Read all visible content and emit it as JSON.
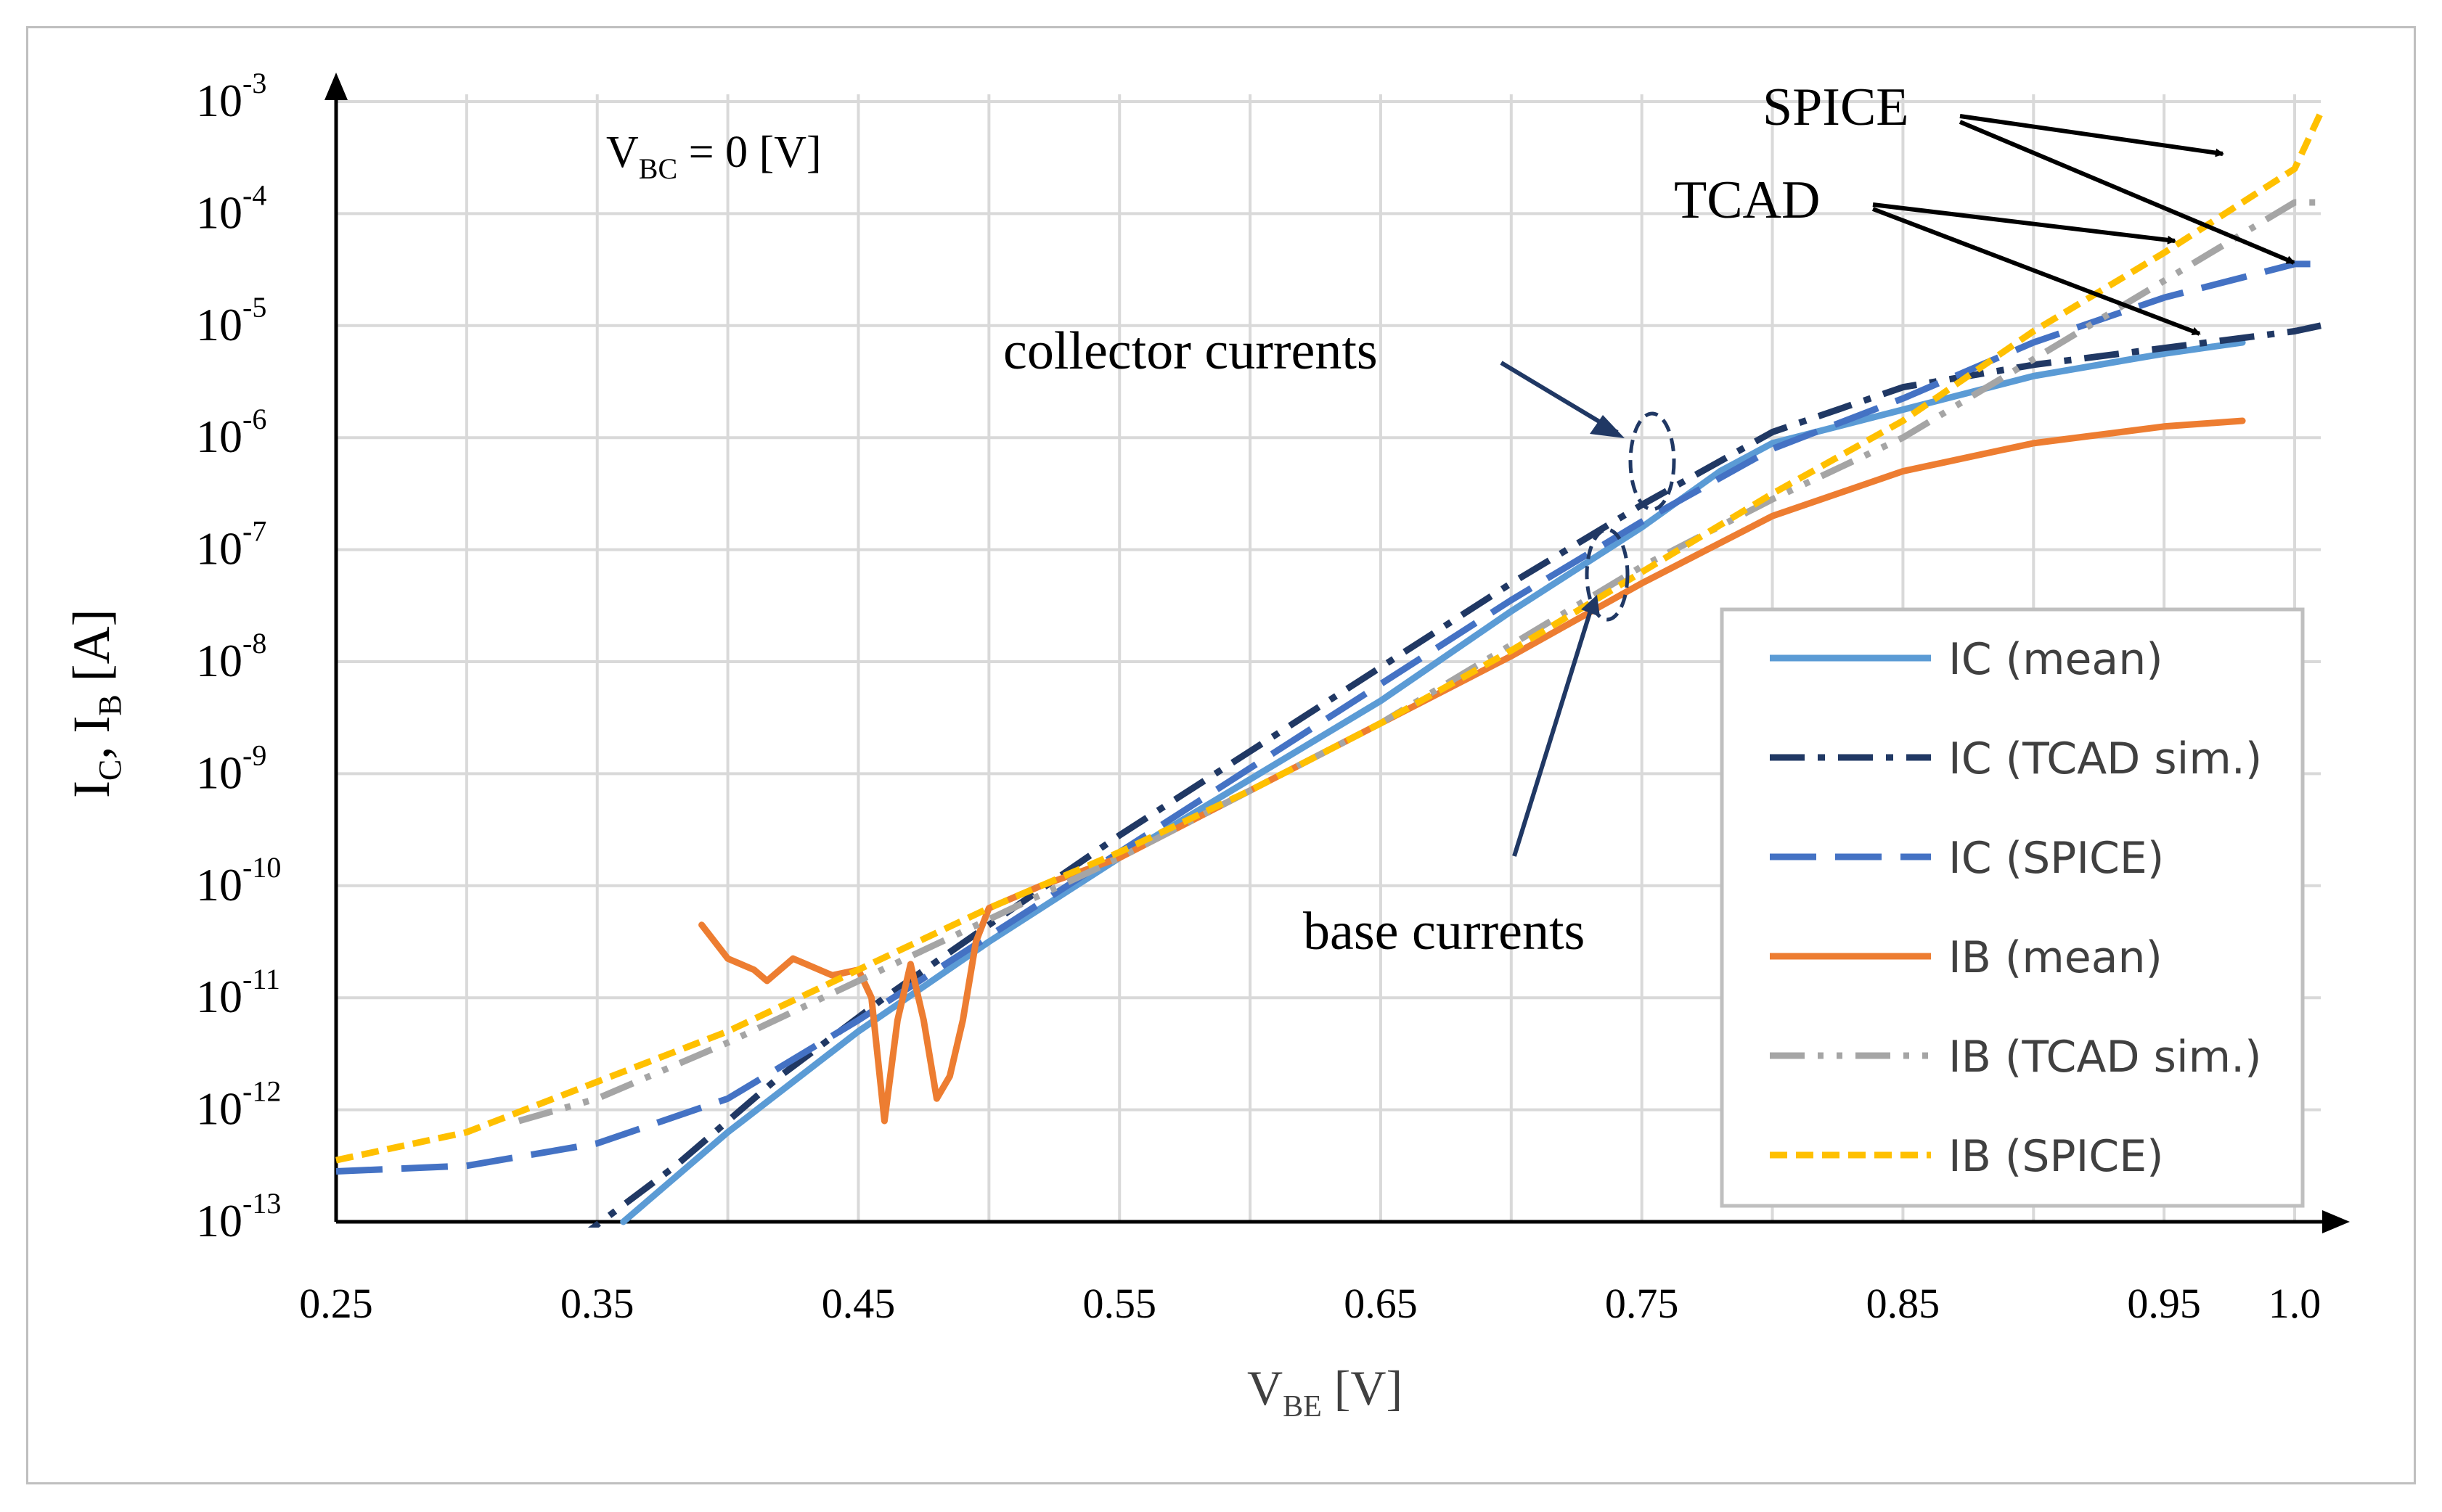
{
  "chart_data": {
    "type": "line",
    "title": "",
    "xlabel": {
      "main": "V",
      "sub": "BE",
      "unit": " [V]"
    },
    "ylabel": {
      "p1": "I",
      "s1": "C",
      "p2": ", I",
      "s2": "B",
      "unit": " [A]"
    },
    "xlim": [
      0.25,
      1.01
    ],
    "ylim_log10": [
      -13,
      -3
    ],
    "x_ticks": [
      {
        "v": 0.25,
        "label": "0.25"
      },
      {
        "v": 0.35,
        "label": "0.35"
      },
      {
        "v": 0.45,
        "label": "0.45"
      },
      {
        "v": 0.55,
        "label": "0.55"
      },
      {
        "v": 0.65,
        "label": "0.65"
      },
      {
        "v": 0.75,
        "label": "0.75"
      },
      {
        "v": 0.85,
        "label": "0.85"
      },
      {
        "v": 0.95,
        "label": "0.95"
      },
      {
        "v": 1.0,
        "label": "1.0"
      }
    ],
    "y_ticks": [
      {
        "exp": -13,
        "base": "10",
        "sup": "-13"
      },
      {
        "exp": -12,
        "base": "10",
        "sup": "-12"
      },
      {
        "exp": -11,
        "base": "10",
        "sup": "-11"
      },
      {
        "exp": -10,
        "base": "10",
        "sup": "-10"
      },
      {
        "exp": -9,
        "base": "10",
        "sup": "-9"
      },
      {
        "exp": -8,
        "base": "10",
        "sup": "-8"
      },
      {
        "exp": -7,
        "base": "10",
        "sup": "-7"
      },
      {
        "exp": -6,
        "base": "10",
        "sup": "-6"
      },
      {
        "exp": -5,
        "base": "10",
        "sup": "-5"
      },
      {
        "exp": -4,
        "base": "10",
        "sup": "-4"
      },
      {
        "exp": -3,
        "base": "10",
        "sup": "-3"
      }
    ],
    "condition_label": {
      "main": "V",
      "sub": "BC",
      "rest": " = 0 [V]"
    },
    "annotations": {
      "spice": "SPICE",
      "tcad": "TCAD",
      "collector": "collector currents",
      "base": "base currents"
    },
    "series": [
      {
        "name": "IC (mean)",
        "color": "#5B9BD5",
        "dash": "solid",
        "x": [
          0.36,
          0.4,
          0.45,
          0.5,
          0.55,
          0.6,
          0.65,
          0.7,
          0.75,
          0.78,
          0.8,
          0.85,
          0.9,
          0.95,
          0.98
        ],
        "log10y": [
          -13.0,
          -12.2,
          -11.3,
          -10.5,
          -9.75,
          -9.05,
          -8.35,
          -7.55,
          -6.8,
          -6.3,
          -6.05,
          -5.75,
          -5.45,
          -5.25,
          -5.15
        ]
      },
      {
        "name": "IC (TCAD sim.)",
        "color": "#203864",
        "dash": "dashdot",
        "x": [
          0.34,
          0.38,
          0.42,
          0.46,
          0.5,
          0.55,
          0.6,
          0.65,
          0.7,
          0.75,
          0.8,
          0.85,
          0.9,
          0.95,
          1.0,
          1.01
        ],
        "log10y": [
          -13.2,
          -12.5,
          -11.7,
          -11.0,
          -10.35,
          -9.55,
          -8.8,
          -8.05,
          -7.3,
          -6.6,
          -5.95,
          -5.55,
          -5.35,
          -5.2,
          -5.05,
          -5.0
        ]
      },
      {
        "name": "IC (SPICE)",
        "color": "#4472C4",
        "dash": "longdash",
        "x": [
          0.25,
          0.3,
          0.35,
          0.4,
          0.45,
          0.5,
          0.55,
          0.6,
          0.65,
          0.7,
          0.75,
          0.8,
          0.85,
          0.9,
          0.95,
          1.0,
          1.01
        ],
        "log10y": [
          -12.55,
          -12.5,
          -12.3,
          -11.9,
          -11.2,
          -10.45,
          -9.7,
          -8.95,
          -8.2,
          -7.45,
          -6.75,
          -6.1,
          -5.65,
          -5.15,
          -4.75,
          -4.45,
          -4.45
        ]
      },
      {
        "name": "IB (mean)",
        "color": "#ED7D31",
        "dash": "solid",
        "x": [
          0.39,
          0.4,
          0.41,
          0.415,
          0.425,
          0.43,
          0.44,
          0.45,
          0.455,
          0.46,
          0.465,
          0.47,
          0.475,
          0.48,
          0.485,
          0.49,
          0.495,
          0.5,
          0.52,
          0.55,
          0.6,
          0.65,
          0.7,
          0.75,
          0.8,
          0.85,
          0.9,
          0.95,
          0.98
        ],
        "log10y": [
          -10.35,
          -10.65,
          -10.75,
          -10.85,
          -10.65,
          -10.7,
          -10.8,
          -10.75,
          -11.0,
          -12.1,
          -11.2,
          -10.7,
          -11.2,
          -11.9,
          -11.7,
          -11.2,
          -10.5,
          -10.2,
          -10.0,
          -9.75,
          -9.15,
          -8.55,
          -7.95,
          -7.3,
          -6.7,
          -6.3,
          -6.05,
          -5.9,
          -5.85
        ]
      },
      {
        "name": "IB (TCAD sim.)",
        "color": "#A5A5A5",
        "dash": "dashdotdot",
        "x": [
          0.32,
          0.35,
          0.4,
          0.45,
          0.5,
          0.55,
          0.6,
          0.65,
          0.7,
          0.75,
          0.8,
          0.85,
          0.9,
          0.95,
          1.0,
          1.01
        ],
        "log10y": [
          -12.1,
          -11.9,
          -11.4,
          -10.85,
          -10.3,
          -9.75,
          -9.15,
          -8.55,
          -7.85,
          -7.15,
          -6.55,
          -6.0,
          -5.3,
          -4.6,
          -3.9,
          -3.9
        ]
      },
      {
        "name": "IB (SPICE)",
        "color": "#FFC000",
        "dash": "shortdash",
        "x": [
          0.25,
          0.3,
          0.35,
          0.4,
          0.45,
          0.5,
          0.55,
          0.6,
          0.65,
          0.7,
          0.75,
          0.8,
          0.85,
          0.9,
          0.95,
          1.0,
          1.01
        ],
        "log10y": [
          -12.45,
          -12.2,
          -11.75,
          -11.3,
          -10.75,
          -10.2,
          -9.7,
          -9.15,
          -8.55,
          -7.9,
          -7.2,
          -6.5,
          -5.85,
          -5.05,
          -4.35,
          -3.6,
          -3.1
        ]
      }
    ]
  }
}
